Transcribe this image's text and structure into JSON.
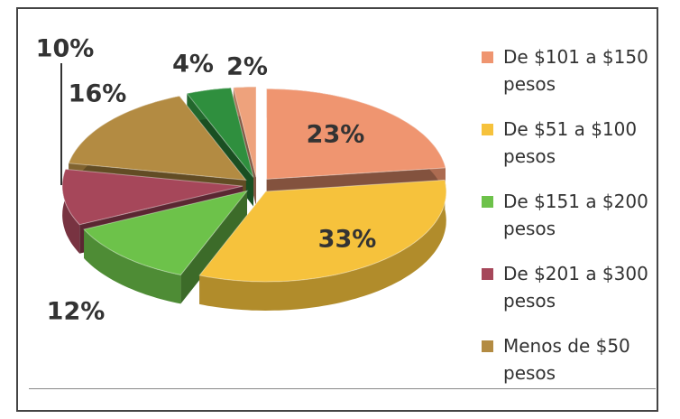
{
  "chart_data": {
    "type": "pie",
    "categories": [
      "De $101 a $150 pesos",
      "De $51 a $100 pesos",
      "De $151 a $200 pesos",
      "De $201 a $300 pesos",
      "Menos de $50 pesos",
      null,
      null
    ],
    "values": [
      23,
      33,
      12,
      10,
      16,
      4,
      2
    ],
    "value_labels": [
      "23%",
      "33%",
      "12%",
      "10%",
      "16%",
      "4%",
      "2%"
    ],
    "colors": [
      "#ef9570",
      "#f6c23c",
      "#6dc24a",
      "#a6475a",
      "#b38b42",
      "#2f8f3e",
      "#eea27c"
    ]
  }
}
